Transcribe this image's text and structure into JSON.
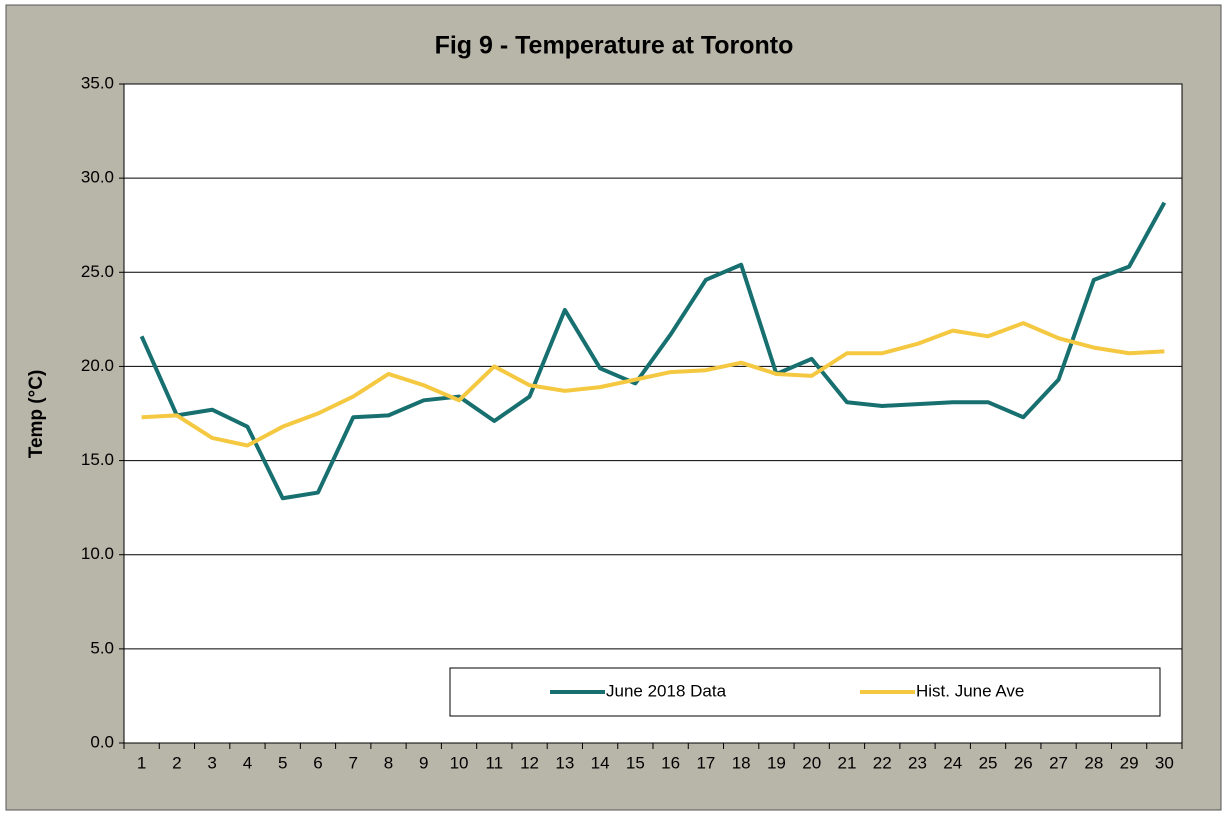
{
  "chart_data": {
    "type": "line",
    "title": "Fig 9 - Temperature at Toronto",
    "y_label": "Temp (°C)",
    "categories": [
      "1",
      "2",
      "3",
      "4",
      "5",
      "6",
      "7",
      "8",
      "9",
      "10",
      "11",
      "12",
      "13",
      "14",
      "15",
      "16",
      "17",
      "18",
      "19",
      "20",
      "21",
      "22",
      "23",
      "24",
      "25",
      "26",
      "27",
      "28",
      "29",
      "30"
    ],
    "series": [
      {
        "name": "June 2018 Data",
        "color": "#17706f",
        "values": [
          21.6,
          17.4,
          17.7,
          16.8,
          13.0,
          13.3,
          17.3,
          17.4,
          18.2,
          18.4,
          17.1,
          18.4,
          23.0,
          19.9,
          19.1,
          21.7,
          24.6,
          25.4,
          19.6,
          20.4,
          18.1,
          17.9,
          18.0,
          18.1,
          18.1,
          17.3,
          19.3,
          24.6,
          25.3,
          28.7
        ]
      },
      {
        "name": "Hist. June Ave",
        "color": "#f5c842",
        "values": [
          17.3,
          17.4,
          16.2,
          15.8,
          16.8,
          17.5,
          18.4,
          19.6,
          19.0,
          18.2,
          20.0,
          19.0,
          18.7,
          18.9,
          19.3,
          19.7,
          19.8,
          20.2,
          19.6,
          19.5,
          20.7,
          20.7,
          21.2,
          21.9,
          21.6,
          22.3,
          21.5,
          21.0,
          20.7,
          20.8
        ]
      }
    ],
    "ylim": [
      0,
      35
    ],
    "yticks": [
      {
        "value": 0,
        "label": "0.0"
      },
      {
        "value": 5,
        "label": "5.0"
      },
      {
        "value": 10,
        "label": "10.0"
      },
      {
        "value": 15,
        "label": "15.0"
      },
      {
        "value": 20,
        "label": "20.0"
      },
      {
        "value": 25,
        "label": "25.0"
      },
      {
        "value": 30,
        "label": "30.0"
      },
      {
        "value": 35,
        "label": "35.0"
      }
    ],
    "grid": true,
    "legend": "bottom-right"
  }
}
